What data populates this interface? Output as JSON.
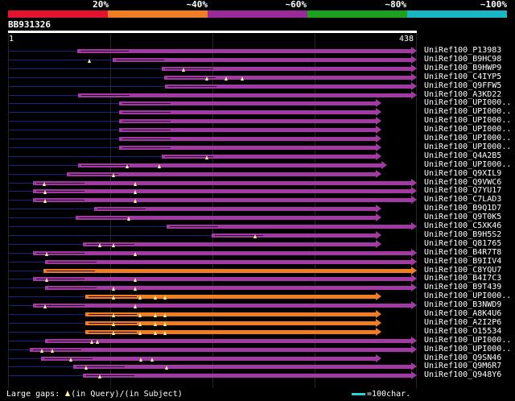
{
  "scale": {
    "labels": [
      "20%",
      "~40%",
      "~60%",
      "~80%",
      "~100%"
    ],
    "colors": [
      "#e3122f",
      "#f07d21",
      "#9a2a9a",
      "#1ba11b",
      "#19b6c3"
    ]
  },
  "query": {
    "id": "BB931326",
    "start": "1",
    "end": "438",
    "length": 438
  },
  "alignment_colors": {
    "purple": "#a33aa3",
    "orange": "#f07d21",
    "gap": "#fff6a0"
  },
  "hits": [
    {
      "label": "UniRef100_P13983",
      "start": 74,
      "end": 438,
      "color": "purple",
      "gaps": []
    },
    {
      "label": "UniRef100_B9HC98",
      "start": 112,
      "end": 438,
      "color": "purple",
      "gaps": [
        87
      ]
    },
    {
      "label": "UniRef100_B9HWP9",
      "start": 165,
      "end": 438,
      "color": "purple",
      "gaps": [
        188
      ]
    },
    {
      "label": "UniRef100_C4IYP5",
      "start": 167,
      "end": 438,
      "color": "purple",
      "gaps": [
        213,
        234,
        251
      ]
    },
    {
      "label": "UniRef100_Q9FFW5",
      "start": 168,
      "end": 438,
      "color": "purple",
      "gaps": []
    },
    {
      "label": "UniRef100_A3KD22",
      "start": 75,
      "end": 438,
      "color": "purple",
      "gaps": []
    },
    {
      "label": "UniRef100_UPI000..",
      "start": 119,
      "end": 400,
      "color": "purple",
      "gaps": []
    },
    {
      "label": "UniRef100_UPI000..",
      "start": 119,
      "end": 400,
      "color": "purple",
      "gaps": []
    },
    {
      "label": "UniRef100_UPI000..",
      "start": 119,
      "end": 400,
      "color": "purple",
      "gaps": []
    },
    {
      "label": "UniRef100_UPI000..",
      "start": 119,
      "end": 400,
      "color": "purple",
      "gaps": []
    },
    {
      "label": "UniRef100_UPI000..",
      "start": 119,
      "end": 400,
      "color": "purple",
      "gaps": []
    },
    {
      "label": "UniRef100_UPI000..",
      "start": 119,
      "end": 400,
      "color": "purple",
      "gaps": []
    },
    {
      "label": "UniRef100_Q4A2B5",
      "start": 165,
      "end": 400,
      "color": "purple",
      "gaps": [
        213
      ]
    },
    {
      "label": "UniRef100_UPI000..",
      "start": 75,
      "end": 406,
      "color": "purple",
      "gaps": [
        128,
        162
      ]
    },
    {
      "label": "UniRef100_Q9XIL9",
      "start": 63,
      "end": 400,
      "color": "purple",
      "gaps": [
        113
      ]
    },
    {
      "label": "UniRef100_Q9VWC6",
      "start": 27,
      "end": 438,
      "color": "purple",
      "gaps": [
        39,
        136
      ]
    },
    {
      "label": "UniRef100_Q7YU17",
      "start": 27,
      "end": 438,
      "color": "purple",
      "gaps": [
        40,
        136
      ]
    },
    {
      "label": "UniRef100_C7LAD3",
      "start": 27,
      "end": 438,
      "color": "purple",
      "gaps": [
        40,
        136
      ]
    },
    {
      "label": "UniRef100_B9Q1D7",
      "start": 92,
      "end": 400,
      "color": "purple",
      "gaps": []
    },
    {
      "label": "UniRef100_Q9T0K5",
      "start": 72,
      "end": 400,
      "color": "purple",
      "gaps": [
        129
      ]
    },
    {
      "label": "UniRef100_C5XK46",
      "start": 170,
      "end": 438,
      "color": "purple",
      "gaps": []
    },
    {
      "label": "UniRef100_B9H5S2",
      "start": 218,
      "end": 400,
      "color": "purple",
      "gaps": [
        265
      ]
    },
    {
      "label": "UniRef100_Q81765",
      "start": 80,
      "end": 400,
      "color": "purple",
      "gaps": [
        98,
        113
      ]
    },
    {
      "label": "UniRef100_B4R7T8",
      "start": 27,
      "end": 438,
      "color": "purple",
      "gaps": [
        41,
        136
      ]
    },
    {
      "label": "UniRef100_B9IIV4",
      "start": 40,
      "end": 438,
      "color": "purple",
      "gaps": []
    },
    {
      "label": "UniRef100_C8YQU7",
      "start": 38,
      "end": 438,
      "color": "orange",
      "gaps": []
    },
    {
      "label": "UniRef100_B4I7C3",
      "start": 27,
      "end": 438,
      "color": "purple",
      "gaps": [
        41,
        136
      ]
    },
    {
      "label": "UniRef100_B9T439",
      "start": 40,
      "end": 438,
      "color": "purple",
      "gaps": [
        113,
        136
      ]
    },
    {
      "label": "UniRef100_UPI000..",
      "start": 83,
      "end": 400,
      "color": "orange",
      "gaps": [
        113,
        141,
        158,
        168
      ]
    },
    {
      "label": "UniRef100_B3NWD9",
      "start": 27,
      "end": 438,
      "color": "purple",
      "gaps": [
        40,
        136
      ]
    },
    {
      "label": "UniRef100_A8K4U6",
      "start": 83,
      "end": 400,
      "color": "orange",
      "gaps": [
        113,
        141,
        158,
        168
      ]
    },
    {
      "label": "UniRef100_A2I2P6",
      "start": 83,
      "end": 400,
      "color": "orange",
      "gaps": [
        113,
        141,
        158,
        168
      ]
    },
    {
      "label": "UniRef100_O15534",
      "start": 83,
      "end": 400,
      "color": "orange",
      "gaps": [
        113,
        141,
        158,
        168
      ]
    },
    {
      "label": "UniRef100_UPI000..",
      "start": 40,
      "end": 438,
      "color": "purple",
      "gaps": [
        90,
        96
      ]
    },
    {
      "label": "UniRef100_UPI000..",
      "start": 23,
      "end": 438,
      "color": "purple",
      "gaps": [
        36,
        47
      ]
    },
    {
      "label": "UniRef100_Q9SN46",
      "start": 35,
      "end": 400,
      "color": "purple",
      "gaps": [
        67,
        142,
        154
      ]
    },
    {
      "label": "UniRef100_Q9M6R7",
      "start": 70,
      "end": 438,
      "color": "purple",
      "gaps": [
        84,
        170
      ]
    },
    {
      "label": "UniRef100_Q948Y6",
      "start": 80,
      "end": 438,
      "color": "purple",
      "gaps": [
        98
      ]
    }
  ],
  "legend": {
    "gaps_prefix": "Large gaps:",
    "gaps_query": "(in Query)/",
    "gaps_subject": "(in Subject)",
    "scale_text": "=100char."
  }
}
